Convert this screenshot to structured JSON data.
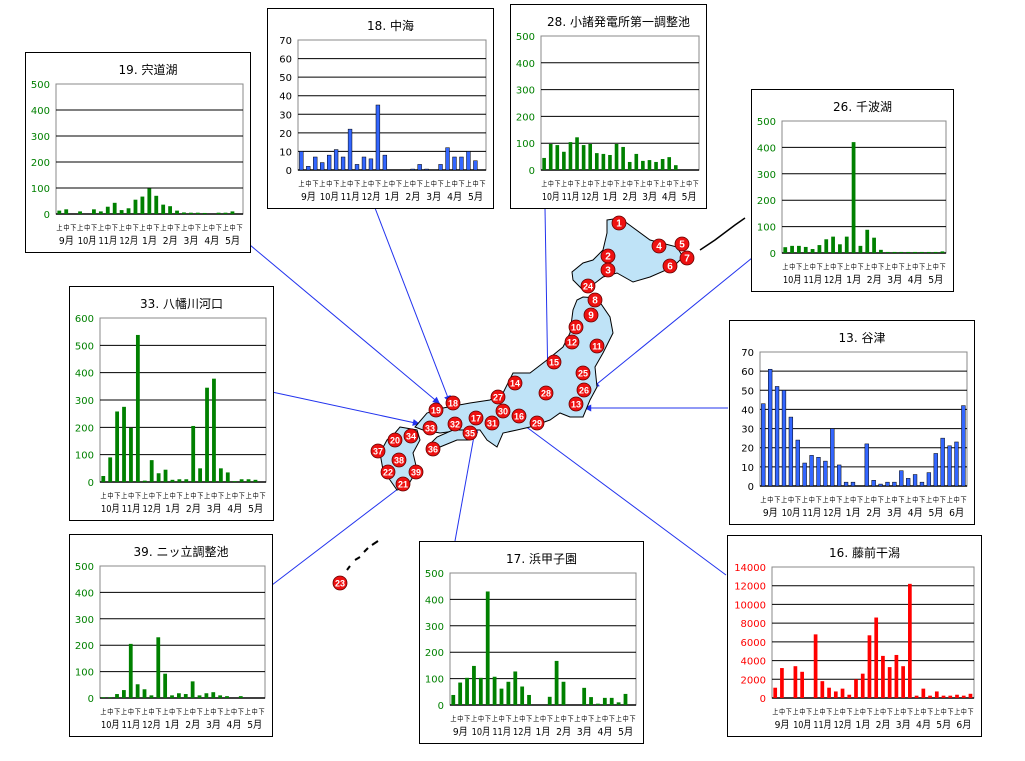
{
  "colors": {
    "green": "#008000",
    "blue": "#3366ff",
    "red": "#ff0000",
    "map_fill": "#bfe3f7",
    "marker": "#ee1111",
    "leader": "#2233ee"
  },
  "dekad_labels": [
    "上",
    "中",
    "下"
  ],
  "map": {
    "markers": [
      "1",
      "4",
      "5",
      "7",
      "6",
      "2",
      "3",
      "24",
      "8",
      "9",
      "10",
      "12",
      "11",
      "15",
      "25",
      "26",
      "28",
      "13",
      "14",
      "27",
      "30",
      "16",
      "29",
      "17",
      "31",
      "35",
      "32",
      "18",
      "19",
      "33",
      "34",
      "36",
      "20",
      "37",
      "38",
      "22",
      "21",
      "39",
      "23"
    ]
  },
  "charts": [
    {
      "id": "c19",
      "title": "19. 宍道湖",
      "type": "bar",
      "axis_color": "#008000",
      "bar_color": "#008000",
      "months": [
        "9月",
        "10月",
        "11月",
        "12月",
        "1月",
        "2月",
        "3月",
        "4月",
        "5月"
      ],
      "ylim": [
        0,
        500
      ],
      "ystep": 100,
      "values": [
        13,
        18,
        0,
        10,
        0,
        18,
        10,
        28,
        43,
        15,
        22,
        55,
        67,
        98,
        70,
        36,
        30,
        13,
        6,
        5,
        5,
        4,
        0,
        5,
        5,
        10,
        0
      ]
    },
    {
      "id": "c18",
      "title": "18. 中海",
      "type": "bar",
      "axis_color": "#000000",
      "bar_color": "#3366ff",
      "months": [
        "9月",
        "10月",
        "11月",
        "12月",
        "1月",
        "2月",
        "3月",
        "4月",
        "5月"
      ],
      "ylim": [
        0,
        70
      ],
      "ystep": 10,
      "values": [
        10,
        2,
        7,
        4,
        8,
        11,
        7,
        22,
        3,
        7,
        6,
        35,
        8,
        0,
        0,
        0,
        0.5,
        3,
        0.5,
        0,
        3,
        12,
        7,
        7,
        10,
        5,
        0
      ]
    },
    {
      "id": "c28",
      "title": "28. 小諸発電所第一調整池",
      "type": "bar",
      "axis_color": "#008000",
      "bar_color": "#008000",
      "months": [
        "10月",
        "11月",
        "12月",
        "1月",
        "2月",
        "3月",
        "4月",
        "5月"
      ],
      "ylim": [
        0,
        500
      ],
      "ystep": 100,
      "values": [
        45,
        97,
        93,
        68,
        104,
        122,
        93,
        97,
        63,
        60,
        56,
        97,
        86,
        30,
        60,
        34,
        37,
        30,
        41,
        48,
        18,
        0,
        0,
        0
      ]
    },
    {
      "id": "c26",
      "title": "26. 千波湖",
      "type": "bar",
      "axis_color": "#008000",
      "bar_color": "#008000",
      "months": [
        "10月",
        "11月",
        "12月",
        "1月",
        "2月",
        "3月",
        "4月",
        "5月"
      ],
      "ylim": [
        0,
        500
      ],
      "ystep": 100,
      "values": [
        22,
        27,
        27,
        23,
        15,
        30,
        52,
        62,
        33,
        62,
        420,
        27,
        88,
        58,
        12,
        4,
        4,
        4,
        4,
        4,
        4,
        4,
        4,
        6
      ]
    },
    {
      "id": "c33",
      "title": "33. 八幡川河口",
      "type": "bar",
      "axis_color": "#008000",
      "bar_color": "#008000",
      "months": [
        "10月",
        "11月",
        "12月",
        "1月",
        "2月",
        "3月",
        "4月",
        "5月"
      ],
      "ylim": [
        0,
        600
      ],
      "ystep": 100,
      "values": [
        22,
        90,
        258,
        275,
        198,
        538,
        5,
        80,
        32,
        45,
        8,
        10,
        10,
        205,
        50,
        345,
        378,
        50,
        35,
        3,
        10,
        10,
        8,
        0
      ]
    },
    {
      "id": "c13",
      "title": "13. 谷津",
      "type": "bar",
      "axis_color": "#000000",
      "bar_color": "#3366ff",
      "months": [
        "9月",
        "10月",
        "11月",
        "12月",
        "1月",
        "2月",
        "3月",
        "4月",
        "5月",
        "6月"
      ],
      "ylim": [
        0,
        70
      ],
      "ystep": 10,
      "values": [
        43,
        61,
        52,
        50,
        36,
        24,
        12,
        16,
        15,
        13,
        30,
        11,
        2,
        2,
        0,
        22,
        3,
        1,
        2,
        2,
        8,
        4,
        6,
        2,
        7,
        17,
        25,
        21,
        23,
        42
      ]
    },
    {
      "id": "c39",
      "title": "39. ニッ立調整池",
      "type": "bar",
      "axis_color": "#008000",
      "bar_color": "#008000",
      "months": [
        "10月",
        "11月",
        "12月",
        "1月",
        "2月",
        "3月",
        "4月",
        "5月"
      ],
      "ylim": [
        0,
        500
      ],
      "ystep": 100,
      "values": [
        3,
        3,
        15,
        30,
        205,
        52,
        33,
        10,
        230,
        92,
        10,
        18,
        15,
        63,
        10,
        18,
        22,
        10,
        7,
        0,
        7,
        0,
        0,
        0
      ]
    },
    {
      "id": "c17",
      "title": "17. 浜甲子園",
      "type": "bar",
      "axis_color": "#008000",
      "bar_color": "#008000",
      "months": [
        "9月",
        "10月",
        "11月",
        "12月",
        "1月",
        "2月",
        "3月",
        "4月",
        "5月"
      ],
      "ylim": [
        0,
        500
      ],
      "ystep": 100,
      "values": [
        38,
        85,
        103,
        148,
        103,
        430,
        107,
        62,
        88,
        127,
        70,
        38,
        0,
        0,
        31,
        167,
        88,
        0,
        0,
        65,
        30,
        5,
        27,
        27,
        10,
        42,
        0
      ]
    },
    {
      "id": "c16",
      "title": "16. 藤前干潟",
      "type": "bar",
      "axis_color": "#ff0000",
      "bar_color": "#ff0000",
      "months": [
        "9月",
        "10月",
        "11月",
        "12月",
        "1月",
        "2月",
        "3月",
        "4月",
        "5月",
        "6月"
      ],
      "ylim": [
        0,
        14000
      ],
      "ystep": 2000,
      "values": [
        1100,
        3200,
        0,
        3400,
        2800,
        0,
        6800,
        1800,
        1100,
        700,
        1000,
        350,
        2000,
        2600,
        6700,
        8600,
        4500,
        3300,
        4600,
        3400,
        12200,
        250,
        1000,
        250,
        700,
        250,
        250,
        350,
        250,
        450
      ]
    }
  ]
}
